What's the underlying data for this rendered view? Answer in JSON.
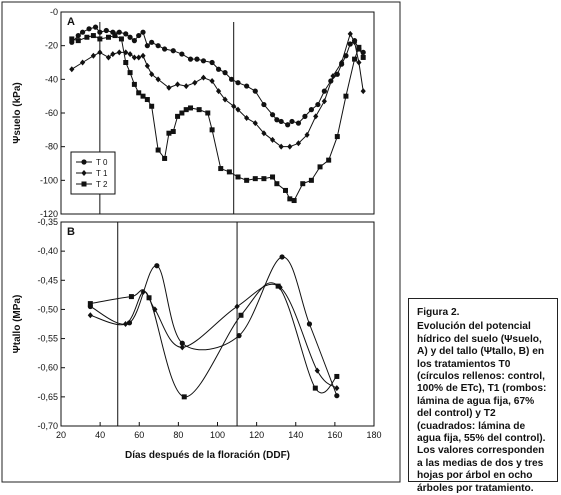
{
  "chart_data": [
    {
      "panel": "A",
      "type": "line",
      "ylabel": "Ψsuelo (kPa)",
      "xlim": [
        30,
        175
      ],
      "ylim": [
        -120,
        0
      ],
      "yticks": [
        "-0",
        "-20",
        "-40",
        "-60",
        "-80",
        "-100",
        "-120"
      ],
      "vertical_lines_x": [
        48,
        110
      ],
      "legend": {
        "placement": "bottom-left",
        "entries": [
          "T 0",
          "T 1",
          "T 2"
        ]
      },
      "series": [
        {
          "name": "T 0",
          "marker": "circle",
          "x": [
            35,
            38,
            40,
            43,
            46,
            48,
            51,
            54,
            57,
            60,
            62,
            64,
            66,
            68,
            70,
            72,
            75,
            78,
            82,
            86,
            90,
            93,
            96,
            100,
            103,
            106,
            109,
            112,
            116,
            120,
            124,
            128,
            130,
            132,
            135,
            137,
            140,
            143,
            146,
            149,
            152,
            155,
            158,
            160,
            162,
            164,
            166,
            168,
            170
          ],
          "y": [
            -18,
            -14,
            -12,
            -10,
            -9,
            -12,
            -11,
            -12,
            -12,
            -13,
            -15,
            -17,
            -14,
            -12,
            -20,
            -18,
            -20,
            -22,
            -23,
            -25,
            -28,
            -28,
            -29,
            -30,
            -34,
            -36,
            -40,
            -42,
            -44,
            -47,
            -55,
            -61,
            -64,
            -65,
            -67,
            -65,
            -66,
            -62,
            -58,
            -55,
            -47,
            -41,
            -37,
            -31,
            -26,
            -19,
            -17,
            -22,
            -24
          ]
        },
        {
          "name": "T 1",
          "marker": "diamond",
          "x": [
            35,
            40,
            45,
            48,
            52,
            54,
            57,
            60,
            62,
            64,
            66,
            68,
            70,
            72,
            75,
            80,
            84,
            88,
            92,
            96,
            100,
            103,
            106,
            110,
            112,
            116,
            120,
            124,
            128,
            132,
            136,
            140,
            144,
            148,
            152,
            156,
            160,
            164,
            166,
            168,
            170
          ],
          "y": [
            -34,
            -30,
            -26,
            -24,
            -27,
            -25,
            -24,
            -24,
            -25,
            -27,
            -27,
            -26,
            -32,
            -37,
            -40,
            -45,
            -43,
            -44,
            -42,
            -39,
            -41,
            -47,
            -52,
            -56,
            -58,
            -63,
            -66,
            -72,
            -76,
            -80,
            -80,
            -78,
            -73,
            -62,
            -53,
            -38,
            -30,
            -13,
            -18,
            -30,
            -47
          ]
        },
        {
          "name": "T 2",
          "marker": "square",
          "x": [
            35,
            38,
            42,
            45,
            48,
            52,
            55,
            58,
            60,
            62,
            64,
            66,
            68,
            70,
            72,
            75,
            78,
            80,
            82,
            84,
            86,
            88,
            90,
            94,
            98,
            100,
            104,
            108,
            112,
            116,
            120,
            124,
            128,
            130,
            134,
            136,
            138,
            142,
            146,
            150,
            154,
            158,
            162,
            166,
            168,
            170
          ],
          "y": [
            -16,
            -17,
            -15,
            -14,
            -16,
            -15,
            -14,
            -16,
            -30,
            -36,
            -43,
            -48,
            -50,
            -52,
            -56,
            -82,
            -87,
            -72,
            -71,
            -62,
            -60,
            -58,
            -57,
            -58,
            -60,
            -70,
            -93,
            -95,
            -98,
            -100,
            -99,
            -99,
            -98,
            -102,
            -106,
            -111,
            -112,
            -102,
            -100,
            -92,
            -88,
            -74,
            -50,
            -28,
            -21,
            -27
          ]
        }
      ]
    },
    {
      "panel": "B",
      "type": "line",
      "xlabel": "Días después de la floración (DDF)",
      "ylabel": "Ψtallo (MPa)",
      "xlim": [
        20,
        180
      ],
      "ylim": [
        -0.7,
        -0.35
      ],
      "xticks": [
        "20",
        "40",
        "60",
        "80",
        "100",
        "120",
        "140",
        "160",
        "180"
      ],
      "yticks": [
        "-0,35",
        "-0,40",
        "-0,45",
        "-0,50",
        "-0,55",
        "-0,60",
        "-0,65",
        "-0,70"
      ],
      "vertical_lines_x": [
        49,
        110
      ],
      "series": [
        {
          "name": "T 0",
          "marker": "circle",
          "x": [
            35,
            55,
            69,
            82,
            111,
            133,
            147,
            161
          ],
          "y": [
            -0.495,
            -0.523,
            -0.425,
            -0.558,
            -0.545,
            -0.41,
            -0.525,
            -0.648
          ]
        },
        {
          "name": "T 1",
          "marker": "diamond",
          "x": [
            35,
            53,
            62,
            68,
            82,
            110,
            132,
            151,
            161
          ],
          "y": [
            -0.51,
            -0.525,
            -0.47,
            -0.5,
            -0.565,
            -0.495,
            -0.462,
            -0.605,
            -0.635
          ]
        },
        {
          "name": "T 2",
          "marker": "square",
          "x": [
            35,
            56,
            65,
            83,
            112,
            131,
            150,
            161
          ],
          "y": [
            -0.49,
            -0.478,
            -0.48,
            -0.65,
            -0.51,
            -0.46,
            -0.635,
            -0.615
          ]
        }
      ]
    }
  ],
  "caption": {
    "title": "Figura 2.",
    "text": "Evolución del potencial hídrico del suelo (Ψsuelo, A) y del tallo (Ψtallo, B) en los tratamientos T0 (círculos rellenos: control, 100% de ETc), T1 (rombos: lámina de agua fija, 67% del control) y T2 (cuadrados: lámina de agua fija, 55% del control). Los valores corresponden a las medias de dos y tres hojas por árbol en ocho árboles por tratamiento."
  }
}
